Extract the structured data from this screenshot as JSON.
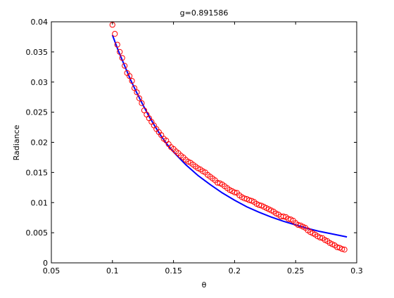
{
  "chart_data": {
    "type": "scatter",
    "title": "g=0.891586",
    "xlabel": "θ",
    "ylabel": "Radiance",
    "xlim": [
      0.05,
      0.3
    ],
    "ylim": [
      0,
      0.04
    ],
    "xticks": [
      0.05,
      0.1,
      0.15,
      0.2,
      0.25,
      0.3
    ],
    "xtick_labels": [
      "0.05",
      "0.1",
      "0.15",
      "0.2",
      "0.25",
      "0.3"
    ],
    "yticks": [
      0,
      0.005,
      0.01,
      0.015,
      0.02,
      0.025,
      0.03,
      0.035,
      0.04
    ],
    "ytick_labels": [
      "0",
      "0.005",
      "0.01",
      "0.015",
      "0.02",
      "0.025",
      "0.03",
      "0.035",
      "0.04"
    ],
    "grid": false,
    "legend": "none",
    "colors": {
      "markers": "#ff0000",
      "fit": "#0000ff",
      "axes": "#000000"
    },
    "series": [
      {
        "kind": "markers",
        "marker": "open-circle",
        "x": [
          0.1,
          0.102,
          0.104,
          0.106,
          0.108,
          0.11,
          0.112,
          0.114,
          0.116,
          0.118,
          0.12,
          0.122,
          0.124,
          0.126,
          0.128,
          0.13,
          0.132,
          0.134,
          0.136,
          0.138,
          0.14,
          0.142,
          0.144,
          0.146,
          0.148,
          0.15,
          0.152,
          0.154,
          0.156,
          0.158,
          0.16,
          0.162,
          0.164,
          0.166,
          0.168,
          0.17,
          0.172,
          0.174,
          0.176,
          0.178,
          0.18,
          0.182,
          0.184,
          0.186,
          0.188,
          0.19,
          0.192,
          0.194,
          0.196,
          0.198,
          0.2,
          0.202,
          0.204,
          0.206,
          0.208,
          0.21,
          0.212,
          0.214,
          0.216,
          0.218,
          0.22,
          0.222,
          0.224,
          0.226,
          0.228,
          0.23,
          0.232,
          0.234,
          0.236,
          0.238,
          0.24,
          0.242,
          0.244,
          0.246,
          0.248,
          0.25,
          0.252,
          0.254,
          0.256,
          0.258,
          0.26,
          0.262,
          0.264,
          0.266,
          0.268,
          0.27,
          0.272,
          0.274,
          0.276,
          0.278,
          0.28,
          0.282,
          0.284,
          0.286,
          0.288,
          0.29
        ],
        "y": [
          0.0395,
          0.038,
          0.0362,
          0.035,
          0.034,
          0.0327,
          0.0315,
          0.031,
          0.0302,
          0.029,
          0.0283,
          0.0273,
          0.0265,
          0.0253,
          0.0246,
          0.024,
          0.0234,
          0.0228,
          0.0222,
          0.0217,
          0.0212,
          0.0206,
          0.0203,
          0.0197,
          0.0192,
          0.0189,
          0.0185,
          0.0182,
          0.0178,
          0.0175,
          0.0171,
          0.0168,
          0.0166,
          0.0163,
          0.016,
          0.0157,
          0.0155,
          0.0152,
          0.015,
          0.0146,
          0.0143,
          0.014,
          0.0137,
          0.0133,
          0.0132,
          0.013,
          0.0127,
          0.0124,
          0.0121,
          0.0119,
          0.0117,
          0.0116,
          0.0112,
          0.0109,
          0.0107,
          0.0106,
          0.0104,
          0.0103,
          0.0101,
          0.0098,
          0.0096,
          0.0095,
          0.0093,
          0.0091,
          0.0089,
          0.0087,
          0.0085,
          0.0082,
          0.008,
          0.0077,
          0.0077,
          0.0076,
          0.0073,
          0.0072,
          0.007,
          0.0066,
          0.0063,
          0.0062,
          0.006,
          0.0058,
          0.0054,
          0.0051,
          0.0049,
          0.0047,
          0.0044,
          0.0042,
          0.0041,
          0.0038,
          0.0036,
          0.0033,
          0.0031,
          0.0029,
          0.0026,
          0.0025,
          0.0023,
          0.0022
        ]
      },
      {
        "kind": "line",
        "x": [
          0.1,
          0.105,
          0.11,
          0.115,
          0.12,
          0.125,
          0.13,
          0.135,
          0.14,
          0.145,
          0.15,
          0.16,
          0.17,
          0.18,
          0.19,
          0.2,
          0.21,
          0.22,
          0.23,
          0.24,
          0.25,
          0.26,
          0.27,
          0.28,
          0.292
        ],
        "y": [
          0.0378,
          0.0351,
          0.0327,
          0.0303,
          0.0282,
          0.0262,
          0.0243,
          0.0226,
          0.021,
          0.0196,
          0.0184,
          0.0163,
          0.0145,
          0.013,
          0.0116,
          0.0104,
          0.0093,
          0.0084,
          0.0076,
          0.0069,
          0.0063,
          0.0057,
          0.0052,
          0.0048,
          0.0043
        ]
      }
    ]
  }
}
